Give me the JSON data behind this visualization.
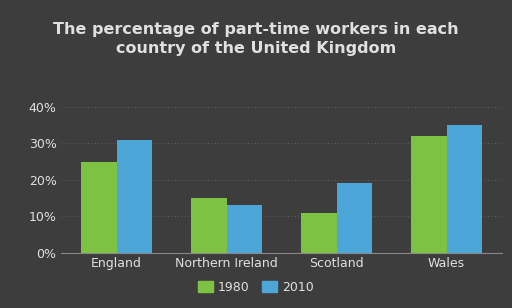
{
  "title": "The percentage of part-time workers in each\ncountry of the United Kingdom",
  "categories": [
    "England",
    "Northern Ireland",
    "Scotland",
    "Wales"
  ],
  "values_1980": [
    25,
    15,
    11,
    32
  ],
  "values_2010": [
    31,
    13,
    19,
    35
  ],
  "color_1980": "#7dc242",
  "color_2010": "#4da6d8",
  "background_color": "#3d3d3d",
  "text_color": "#e0e0e0",
  "yticks": [
    0,
    10,
    20,
    30,
    40
  ],
  "ytick_labels": [
    "0%",
    "10%",
    "20%",
    "30%",
    "40%"
  ],
  "ylim": [
    0,
    44
  ],
  "legend_labels": [
    "1980",
    "2010"
  ],
  "title_fontsize": 11.5,
  "tick_fontsize": 9,
  "legend_fontsize": 9,
  "bar_width": 0.32
}
